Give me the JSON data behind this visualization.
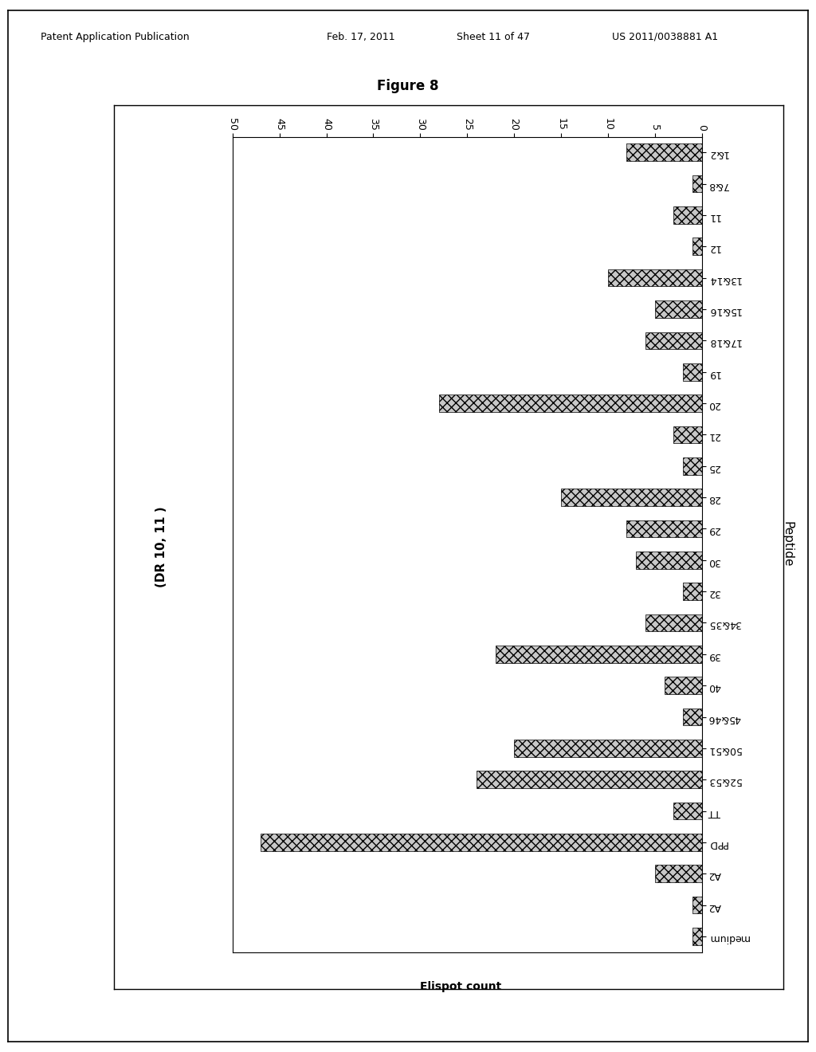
{
  "header": "Patent Application Publication    Feb. 17, 2011   Sheet 11 of 47    US 2011/0038881 A1",
  "title": "Figure 8",
  "xlabel": "Elispot count",
  "ylabel": "Peptide",
  "left_label": "(DR 10, 11 )",
  "xlim": [
    0,
    50
  ],
  "xticks": [
    0,
    5,
    10,
    15,
    20,
    25,
    30,
    35,
    40,
    45,
    50
  ],
  "categories": [
    "1&2",
    "7&8",
    "11",
    "12",
    "13&14",
    "15&16",
    "17&18",
    "19",
    "20",
    "21",
    "25",
    "28",
    "29",
    "30",
    "32",
    "34&35",
    "39",
    "40",
    "45&46",
    "50&51",
    "52&53",
    "TT",
    "PPD",
    "A2",
    "A2",
    "medium"
  ],
  "values": [
    8,
    1,
    3,
    1,
    10,
    5,
    6,
    2,
    28,
    3,
    2,
    15,
    8,
    7,
    2,
    6,
    22,
    4,
    2,
    20,
    24,
    3,
    47,
    5,
    1,
    1
  ],
  "bar_color": "#c8c8c8",
  "bg_color": "#ffffff",
  "font_size_header": 9,
  "font_size_title": 12,
  "font_size_labels": 10,
  "font_size_ticks": 9,
  "font_size_ylabel": 11,
  "font_size_left_label": 11
}
